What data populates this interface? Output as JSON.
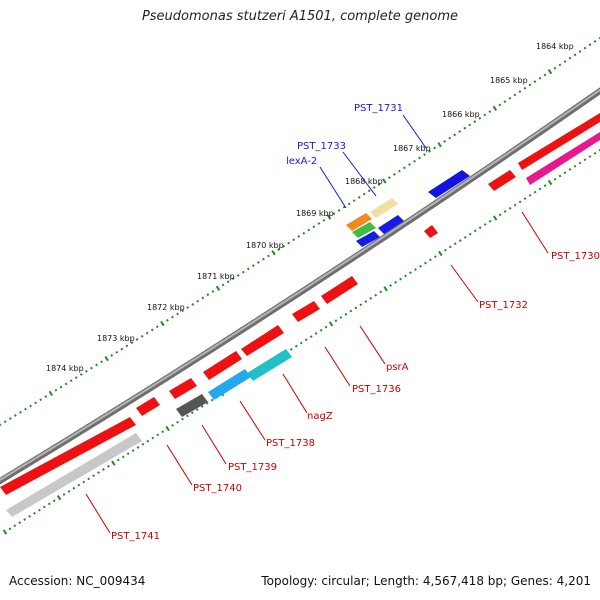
{
  "title": "Pseudomonas stutzeri A1501, complete genome",
  "footer": {
    "accession": "Accession: NC_009434",
    "summary": "Topology: circular; Length: 4,567,418 bp; Genes: 4,201"
  },
  "colors": {
    "label_above": "#1a1ad0",
    "label_below": "#cc0000",
    "backbone": "#8a8a8a",
    "ruler_dots": "#1f8a1f"
  },
  "ruler": {
    "ticks": [
      "1864 kbp",
      "1865 kbp",
      "1866 kbp",
      "1867 kbp",
      "1868 kbp",
      "1869 kbp",
      "1870 kbp",
      "1871 kbp",
      "1872 kbp",
      "1873 kbp",
      "1874 kbp"
    ]
  },
  "genes_above": [
    {
      "label": "PST_1731",
      "color": "#1414e0"
    },
    {
      "label": "PST_1733",
      "color": "#1414e0"
    },
    {
      "label": "lexA-2",
      "color": "#1414e0"
    }
  ],
  "genes_below": [
    {
      "label": "PST_1730",
      "color": "#ee1111"
    },
    {
      "label": "PST_1732",
      "color": "#ee1111"
    },
    {
      "label": "psrA",
      "color": "#ee1111"
    },
    {
      "label": "PST_1736",
      "color": "#ee1111"
    },
    {
      "label": "nagZ",
      "color": "#ee1111"
    },
    {
      "label": "PST_1738",
      "color": "#ee1111"
    },
    {
      "label": "PST_1739",
      "color": "#ee1111"
    },
    {
      "label": "PST_1740",
      "color": "#ee1111"
    },
    {
      "label": "PST_1741",
      "color": "#ee1111"
    }
  ]
}
